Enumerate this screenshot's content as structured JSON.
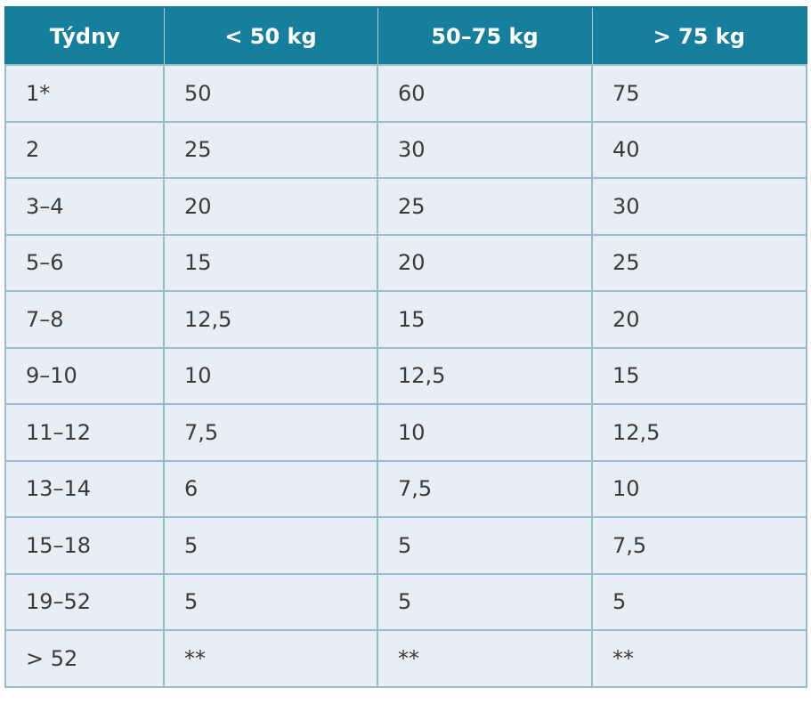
{
  "table": {
    "header": [
      "Týdny",
      "< 50 kg",
      "50–75 kg",
      "> 75 kg"
    ],
    "rows": [
      [
        "1*",
        "50",
        "60",
        "75"
      ],
      [
        "2",
        "25",
        "30",
        "40"
      ],
      [
        "3–4",
        "20",
        "25",
        "30"
      ],
      [
        "5–6",
        "15",
        "20",
        "25"
      ],
      [
        "7–8",
        "12,5",
        "15",
        "20"
      ],
      [
        "9–10",
        "10",
        "12,5",
        "15"
      ],
      [
        "11–12",
        "7,5",
        "10",
        "12,5"
      ],
      [
        "13–14",
        "6",
        "7,5",
        "10"
      ],
      [
        "15–18",
        "5",
        "5",
        "7,5"
      ],
      [
        "19–52",
        "5",
        "5",
        "5"
      ],
      [
        "> 52",
        "**",
        "**",
        "**"
      ]
    ]
  }
}
